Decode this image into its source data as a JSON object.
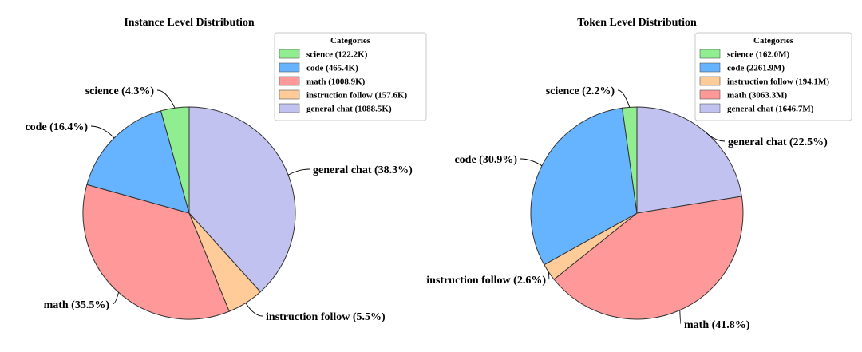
{
  "chart_data": [
    {
      "type": "pie",
      "title": "Instance Level Distribution",
      "legend": {
        "title": "Categories",
        "placement": "top-right",
        "entries": [
          {
            "label": "science (122.2K)",
            "color": "#90ee90"
          },
          {
            "label": "code (465.4K)",
            "color": "#66b3ff"
          },
          {
            "label": "math (1008.9K)",
            "color": "#ff9999"
          },
          {
            "label": "instruction follow (157.6K)",
            "color": "#ffcc99"
          },
          {
            "label": "general chat (1088.5K)",
            "color": "#c2c2f0"
          }
        ]
      },
      "slices": [
        {
          "name": "general chat",
          "value": 1088.5,
          "label": "general chat (38.3%)",
          "color": "#c2c2f0"
        },
        {
          "name": "instruction follow",
          "value": 157.6,
          "label": "instruction follow (5.5%)",
          "color": "#ffcc99"
        },
        {
          "name": "math",
          "value": 1008.9,
          "label": "math (35.5%)",
          "color": "#ff9999"
        },
        {
          "name": "code",
          "value": 465.4,
          "label": "code (16.4%)",
          "color": "#66b3ff"
        },
        {
          "name": "science",
          "value": 122.2,
          "label": "science (4.3%)",
          "color": "#90ee90"
        }
      ]
    },
    {
      "type": "pie",
      "title": "Token Level Distribution",
      "legend": {
        "title": "Categories",
        "placement": "top-right",
        "entries": [
          {
            "label": "science (162.0M)",
            "color": "#90ee90"
          },
          {
            "label": "code (2261.9M)",
            "color": "#66b3ff"
          },
          {
            "label": "instruction follow (194.1M)",
            "color": "#ffcc99"
          },
          {
            "label": "math (3063.3M)",
            "color": "#ff9999"
          },
          {
            "label": "general chat (1646.7M)",
            "color": "#c2c2f0"
          }
        ]
      },
      "slices": [
        {
          "name": "general chat",
          "value": 1646.7,
          "label": "general chat (22.5%)",
          "color": "#c2c2f0"
        },
        {
          "name": "math",
          "value": 3063.3,
          "label": "math (41.8%)",
          "color": "#ff9999"
        },
        {
          "name": "instruction follow",
          "value": 194.1,
          "label": "instruction follow (2.6%)",
          "color": "#ffcc99"
        },
        {
          "name": "code",
          "value": 2261.9,
          "label": "code (30.9%)",
          "color": "#66b3ff"
        },
        {
          "name": "science",
          "value": 162.0,
          "label": "science (2.2%)",
          "color": "#90ee90"
        }
      ]
    }
  ]
}
